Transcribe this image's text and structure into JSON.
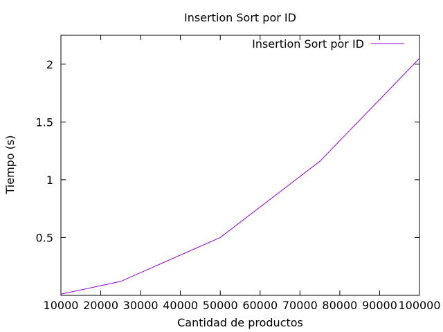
{
  "chart_data": {
    "type": "line",
    "title": "Insertion Sort por ID",
    "xlabel": "Cantidad de productos",
    "ylabel": "Tiempo (s)",
    "xlim": [
      10000,
      100000
    ],
    "ylim": [
      0,
      2.25
    ],
    "x_ticks": [
      10000,
      20000,
      30000,
      40000,
      50000,
      60000,
      70000,
      80000,
      90000,
      100000
    ],
    "x_tick_labels": [
      "10000",
      "20000",
      "30000",
      "40000",
      "50000",
      "60000",
      "70000",
      "80000",
      "90000",
      "100000"
    ],
    "y_ticks": [
      0.5,
      1,
      1.5,
      2
    ],
    "y_tick_labels": [
      "0.5",
      "1",
      "1.5",
      "2"
    ],
    "grid": false,
    "legend_position": "top-right",
    "series": [
      {
        "name": "Insertion Sort por ID",
        "color": "#9400d3",
        "x": [
          10000,
          25000,
          50000,
          75000,
          100000
        ],
        "y": [
          0.01,
          0.12,
          0.5,
          1.16,
          2.05
        ]
      }
    ]
  }
}
